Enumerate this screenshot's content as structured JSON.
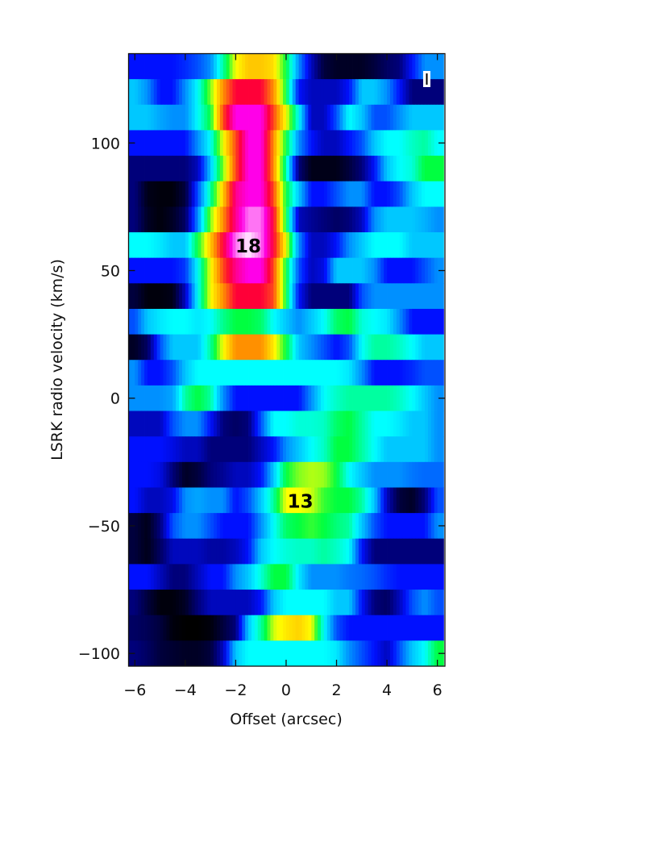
{
  "chart_data": {
    "type": "heatmap",
    "title": "",
    "xlabel": "Offset (arcsec)",
    "ylabel": "LSRK radio velocity  (km/s)",
    "xlim": [
      -6.25,
      6.3
    ],
    "ylim": [
      -105,
      135
    ],
    "x_ticks": [
      -6,
      -4,
      -2,
      0,
      2,
      4,
      6
    ],
    "x_tick_labels": [
      "−6",
      "−4",
      "−2",
      "0",
      "2",
      "4",
      "6"
    ],
    "y_ticks": [
      -100,
      -50,
      0,
      50,
      100
    ],
    "y_tick_labels": [
      "−100",
      "−50",
      "0",
      "50",
      "100"
    ],
    "grid": false,
    "colormap": [
      "#000000",
      "#00007a",
      "#0010ff",
      "#0090ff",
      "#00ffff",
      "#00ff40",
      "#ffff00",
      "#ff9000",
      "#ff0038",
      "#ff00e8",
      "#ffe8ff"
    ],
    "x": [
      -6,
      -5.5,
      -5,
      -4.5,
      -4,
      -3.5,
      -3,
      -2.5,
      -2,
      -1.5,
      -1,
      -0.5,
      0,
      0.5,
      1,
      1.5,
      2,
      2.5,
      3,
      3.5,
      4,
      4.5,
      5,
      5.5,
      6
    ],
    "velocities": [
      130,
      120,
      110,
      100,
      90,
      80,
      70,
      60,
      50,
      40,
      30,
      20,
      10,
      0,
      -10,
      -20,
      -30,
      -40,
      -50,
      -60,
      -70,
      -80,
      -90,
      -100
    ],
    "z": [
      [
        2,
        2,
        2,
        2,
        2.2,
        2.5,
        3,
        4.5,
        6,
        6.5,
        6.5,
        6.3,
        5,
        3,
        1.5,
        0.5,
        0.3,
        0.3,
        0.3,
        0.5,
        0.8,
        1,
        2,
        3,
        3
      ],
      [
        3.5,
        3,
        2,
        2,
        3,
        4,
        5.5,
        7,
        8,
        8,
        8,
        7,
        5,
        2,
        1.5,
        1.5,
        1.5,
        2,
        3.5,
        3.5,
        3,
        2,
        1,
        1,
        1
      ],
      [
        3.5,
        3.5,
        3.2,
        3,
        3,
        4,
        5,
        7.5,
        9,
        9,
        9,
        7.5,
        6,
        4,
        1.5,
        1.5,
        2.5,
        4,
        3.5,
        2.5,
        2.5,
        3,
        3.5,
        3.5,
        3.5
      ],
      [
        2,
        2,
        2,
        2,
        2,
        3,
        4,
        6,
        7.5,
        9,
        9,
        7,
        5,
        3,
        2,
        1.5,
        1.5,
        2,
        2.5,
        3.5,
        4,
        4,
        4.3,
        4.5,
        4
      ],
      [
        1,
        1,
        1,
        1,
        1,
        1.5,
        3.5,
        5.5,
        7.5,
        9,
        9,
        7,
        4.5,
        1,
        0.2,
        0.2,
        0.2,
        0.5,
        1,
        2,
        3.5,
        4,
        4.2,
        5,
        5
      ],
      [
        1,
        0.2,
        0.1,
        0.1,
        0.5,
        2.5,
        4.5,
        6.5,
        8.5,
        9,
        9,
        7.5,
        5,
        3.5,
        2,
        2,
        2.5,
        3,
        3,
        2,
        2,
        2.5,
        3.5,
        4,
        4
      ],
      [
        1,
        0.3,
        0.1,
        0.3,
        0.8,
        3,
        5.5,
        7,
        8.5,
        9.5,
        9.5,
        8,
        5,
        1.5,
        1.2,
        1,
        0.8,
        1,
        1.5,
        3,
        3.5,
        3.5,
        3.5,
        3.3,
        3
      ],
      [
        4,
        4,
        3.8,
        3.5,
        3.5,
        5,
        6.5,
        8,
        9.5,
        10,
        9.5,
        8,
        6,
        3,
        1.5,
        1.5,
        2,
        3,
        3.5,
        4,
        4,
        4,
        3.5,
        3.5,
        3.5
      ],
      [
        2,
        2,
        2,
        2,
        2.3,
        4,
        6,
        7.5,
        8.5,
        9,
        9,
        7.5,
        5,
        2.5,
        1.5,
        1.8,
        3.5,
        3.5,
        3.5,
        3,
        2,
        2,
        2,
        2.5,
        3
      ],
      [
        0.5,
        0.1,
        0.1,
        0.2,
        1.5,
        4,
        6,
        7,
        8,
        8,
        8,
        7.5,
        5,
        2,
        1,
        1,
        1,
        1,
        2.5,
        3,
        3,
        3,
        3,
        3,
        3
      ],
      [
        2.5,
        3.5,
        3.8,
        4,
        4,
        3.8,
        4,
        4.6,
        5,
        5,
        4.8,
        4,
        3.5,
        3,
        3.5,
        4,
        4.8,
        5,
        4.2,
        4,
        3.8,
        3,
        2,
        2,
        2
      ],
      [
        0.3,
        0.8,
        2.5,
        3.5,
        3.5,
        3.5,
        4.5,
        6,
        7,
        7,
        7,
        6.2,
        5,
        3.5,
        3,
        2.5,
        2,
        2.5,
        4,
        4.5,
        4.5,
        4.3,
        4,
        3.5,
        3.5
      ],
      [
        3,
        2,
        2,
        2.5,
        3.5,
        4,
        4,
        4,
        4,
        4,
        4,
        4,
        4,
        4,
        4,
        4,
        4,
        3.8,
        3,
        2,
        2,
        2,
        2.2,
        2.5,
        2.5
      ],
      [
        3,
        3,
        3,
        3.2,
        4.5,
        5,
        4.5,
        3,
        2,
        2,
        2,
        2,
        2,
        2,
        3,
        4,
        4.3,
        4.5,
        4.5,
        4.5,
        4.5,
        4.3,
        4,
        3.5,
        3
      ],
      [
        1.5,
        1.5,
        1.5,
        2.5,
        3,
        3,
        2,
        1,
        0.8,
        1,
        2.5,
        4,
        4,
        4.2,
        4.2,
        4.3,
        4.8,
        5,
        4.5,
        4,
        4,
        3.8,
        3.5,
        3.5,
        3
      ],
      [
        2,
        2,
        2,
        1.8,
        1.5,
        1.5,
        1,
        1,
        1,
        1,
        1.5,
        2,
        3,
        3.5,
        4,
        4.3,
        5,
        5,
        4.5,
        4,
        3.5,
        3.5,
        3.5,
        3.5,
        3
      ],
      [
        2,
        2,
        1.8,
        1,
        0.3,
        0.5,
        1,
        1.2,
        1.5,
        1.5,
        2,
        3.5,
        5,
        5.5,
        5.7,
        5.6,
        5,
        4,
        3.5,
        3,
        3,
        3,
        2.8,
        2.7,
        2.7
      ],
      [
        2,
        1.5,
        1.5,
        1.8,
        3,
        3.2,
        3,
        3,
        2,
        2.5,
        3.5,
        4.5,
        6,
        6,
        5.8,
        5.2,
        5,
        5,
        4.5,
        3.5,
        1.5,
        0.5,
        0.3,
        1,
        2.5
      ],
      [
        0.5,
        0.2,
        1,
        2.5,
        3,
        3,
        2.5,
        2,
        2,
        2,
        3,
        4,
        4.8,
        5,
        5.2,
        5,
        4.7,
        4.5,
        3.5,
        2.5,
        2,
        2,
        2,
        2,
        3
      ],
      [
        0.5,
        0.2,
        0.8,
        1.5,
        1.5,
        1.5,
        1.3,
        1.3,
        1.5,
        2,
        3.5,
        4,
        4.2,
        4.3,
        4.3,
        4.5,
        4.3,
        4,
        2,
        1,
        1,
        1,
        1,
        1,
        1
      ],
      [
        2,
        2,
        1.5,
        1,
        1,
        1.5,
        2,
        2,
        3,
        3.5,
        4.2,
        5,
        5,
        3.8,
        3,
        3,
        3,
        2.8,
        2.7,
        2.5,
        2.2,
        2,
        2,
        2,
        2
      ],
      [
        1,
        0.5,
        0.1,
        0.1,
        0.3,
        1,
        1.5,
        1.5,
        1.5,
        1.5,
        2,
        3.5,
        4,
        4,
        4,
        4,
        3.5,
        3.5,
        2,
        1,
        0.8,
        1.5,
        2.5,
        3,
        2.5
      ],
      [
        0.8,
        0.7,
        0.5,
        0.1,
        0,
        0,
        0.1,
        0.5,
        1,
        3.5,
        4.5,
        5.8,
        6.2,
        6.4,
        6,
        4,
        2.5,
        2,
        2,
        2,
        2,
        2,
        2,
        2,
        2
      ],
      [
        1,
        0.8,
        0.5,
        0.4,
        0.3,
        0.3,
        0.5,
        1.5,
        3.5,
        4,
        4,
        4,
        4,
        4,
        4,
        4,
        3.8,
        3,
        2.5,
        2,
        1.5,
        2.5,
        3.5,
        4,
        5
      ]
    ],
    "zlim": [
      0,
      10
    ],
    "annotations": [
      {
        "text": "18",
        "x": -1.5,
        "v": 60
      },
      {
        "text": "13",
        "x": 0.5,
        "v": -40
      }
    ]
  }
}
